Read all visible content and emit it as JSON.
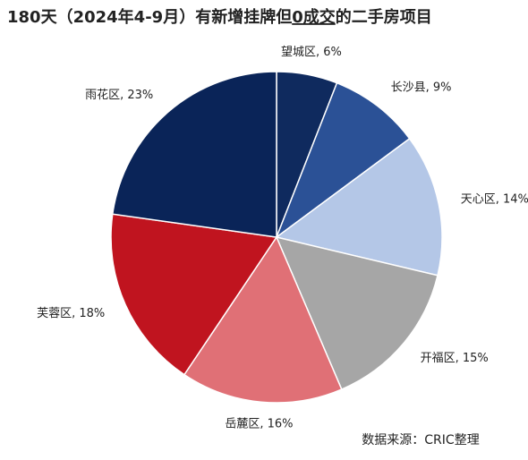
{
  "chart_data": {
    "type": "pie",
    "title": [
      "180天（2024年4-9月）有新增挂牌但",
      "0成交",
      "的二手房项目"
    ],
    "value_labels": [
      "望城区, 6%",
      "长沙县, 9%",
      "天心区, 14%",
      "开福区, 15%",
      "岳麓区, 16%",
      "芙蓉区, 18%",
      "雨花区, 23%"
    ],
    "values": [
      6,
      9,
      14,
      15,
      16,
      18,
      23
    ],
    "colors": [
      "#0f2a5e",
      "#2b5196",
      "#b4c7e7",
      "#a6a6a6",
      "#e07076",
      "#c0141f",
      "#0a2458"
    ],
    "source": "数据来源：CRIC整理"
  }
}
